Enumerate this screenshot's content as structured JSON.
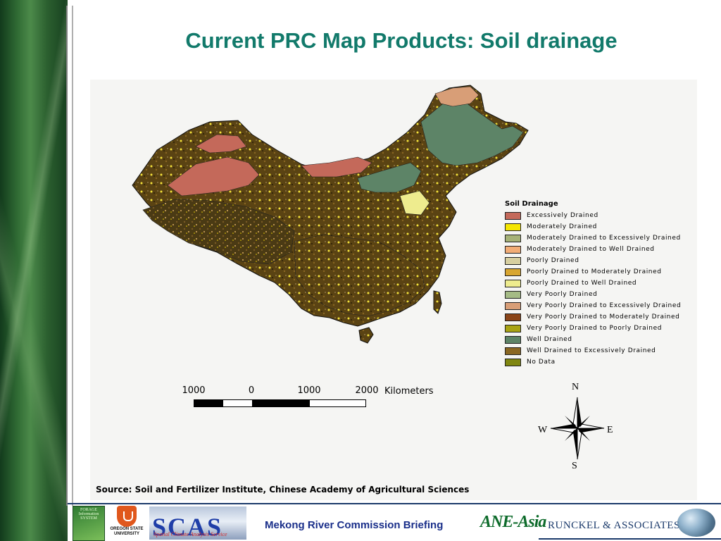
{
  "slide": {
    "title": "Current PRC Map Products: Soil drainage",
    "source": "Source: Soil and Fertilizer Institute, Chinese Academy of Agricultural Sciences"
  },
  "legend": {
    "title": "Soil Drainage",
    "items": [
      {
        "label": "Excessively Drained",
        "color": "#c4695a"
      },
      {
        "label": "Moderately Drained",
        "color": "#f5e600"
      },
      {
        "label": "Moderately Drained to Excessively Drained",
        "color": "#a6b277"
      },
      {
        "label": "Moderately Drained to Well Drained",
        "color": "#f2ad77"
      },
      {
        "label": "Poorly Drained",
        "color": "#d7cfa0"
      },
      {
        "label": "Poorly Drained to Moderately Drained",
        "color": "#d8a630"
      },
      {
        "label": "Poorly Drained to Well Drained",
        "color": "#eeec8e"
      },
      {
        "label": "Very Poorly Drained",
        "color": "#a5bb85"
      },
      {
        "label": "Very Poorly Drained to Excessively Drained",
        "color": "#d89e77"
      },
      {
        "label": "Very Poorly Drained to Moderately Drained",
        "color": "#8a4418"
      },
      {
        "label": "Very Poorly Drained to Poorly Drained",
        "color": "#a8a314"
      },
      {
        "label": "Well Drained",
        "color": "#5d8467"
      },
      {
        "label": "Well Drained to Excessively Drained",
        "color": "#8a6722"
      },
      {
        "label": "No Data",
        "color": "#7f8610"
      }
    ]
  },
  "scale_bar": {
    "ticks": [
      "1000",
      "0",
      "1000",
      "2000"
    ],
    "unit": "Kilometers"
  },
  "compass": {
    "n": "N",
    "s": "S",
    "e": "E",
    "w": "W"
  },
  "footer": {
    "briefing": "Mekong River Commission Briefing",
    "ane": "ANE-Asia",
    "runckel": "RUNCKEL & ASSOCIATES",
    "osu": "OREGON STATE UNIVERSITY",
    "scas": "SCAS",
    "scas_sub": "Spatial Climate Analysis Service",
    "fis": "FORAGE Information SYSTEM"
  }
}
